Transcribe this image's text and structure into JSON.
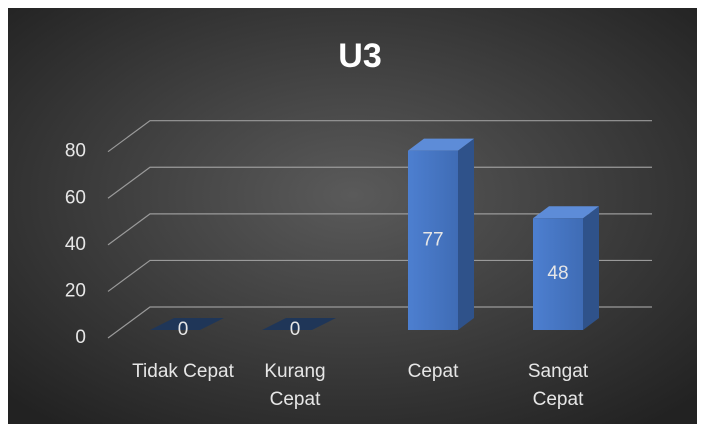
{
  "chart_data": {
    "type": "bar3d",
    "title": "U3",
    "categories": [
      "Tidak Cepat",
      "Kurang Cepat",
      "Cepat",
      "Sangat Cepat"
    ],
    "values": [
      0,
      0,
      77,
      48
    ],
    "color": "#4472c4",
    "ylim": [
      0,
      80
    ],
    "yticks": [
      0,
      20,
      40,
      60,
      80
    ],
    "grid": true
  }
}
